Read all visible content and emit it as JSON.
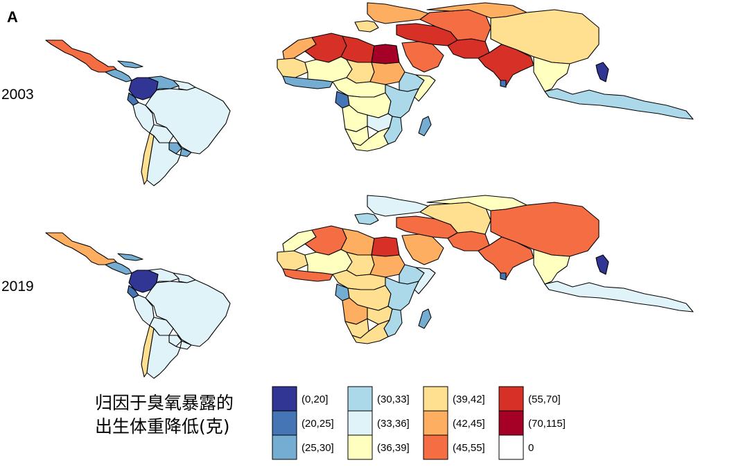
{
  "chart_data": {
    "type": "choropleth-map",
    "panel_label": "A",
    "legend": {
      "title_line1": "归因于臭氧暴露的",
      "title_line2": "出生体重降低(克)",
      "bins": [
        {
          "label": "(0,20]",
          "color": "#313695"
        },
        {
          "label": "(20,25]",
          "color": "#4575b4"
        },
        {
          "label": "(25,30]",
          "color": "#74add1"
        },
        {
          "label": "(30,33]",
          "color": "#abd9e9"
        },
        {
          "label": "(33,36]",
          "color": "#e0f3f8"
        },
        {
          "label": "(36,39]",
          "color": "#ffffbf"
        },
        {
          "label": "(39,42]",
          "color": "#fee090"
        },
        {
          "label": "(42,45]",
          "color": "#fdae61"
        },
        {
          "label": "(45,55]",
          "color": "#f46d43"
        },
        {
          "label": "(55,70]",
          "color": "#d73027"
        },
        {
          "label": "(70,115]",
          "color": "#a50026"
        },
        {
          "label": "0",
          "color": "#ffffff"
        }
      ]
    },
    "panels": [
      {
        "year": "2003",
        "regions": {
          "mexico": "(45,55]",
          "central_america": "(25,30]",
          "caribbean": "(25,30]",
          "colombia": "(0,20]",
          "venezuela": "(25,30]",
          "guianas": "(33,36]",
          "ecuador": "(20,25]",
          "peru": "(33,36]",
          "brazil": "(33,36]",
          "bolivia": "(33,36]",
          "paraguay": "(25,30]",
          "uruguay": "(25,30]",
          "chile": "(39,42]",
          "argentina": "(33,36]",
          "southern_europe": "(42,45]",
          "iberia": "(39,42]",
          "morocco": "(42,45]",
          "algeria": "(55,70]",
          "libya": "(55,70]",
          "egypt": "(70,115]",
          "west_sahel": "(39,42]",
          "west_africa_coast": "(25,30]",
          "mali_niger": "(36,39]",
          "chad": "(39,42]",
          "sudan": "(42,45]",
          "ethiopia": "(30,33]",
          "horn": "(36,39]",
          "central_africa": "(36,39]",
          "gabon_region": "(20,25]",
          "east_africa": "(30,33]",
          "drc": "(36,39]",
          "angola": "(36,39]",
          "zambia": "(33,36]",
          "mozambique": "(30,33]",
          "namibia": "(36,39]",
          "south_africa": "(36,39]",
          "madagascar": "(25,30]",
          "middle_east": "(55,70]",
          "arabia": "(45,55]",
          "iran": "(55,70]",
          "central_asia": "(45,55]",
          "russia": "(42,45]",
          "mongolia_china": "(39,42]",
          "south_asia": "(55,70]",
          "southeast_asia": "(36,39]",
          "indonesia": "(30,33]",
          "philippines": "(0,20]",
          "sri_lanka": "(20,25]"
        }
      },
      {
        "year": "2019",
        "regions": {
          "mexico": "(42,45]",
          "central_america": "(25,30]",
          "caribbean": "(25,30]",
          "colombia": "(0,20]",
          "venezuela": "(33,36]",
          "guianas": "(33,36]",
          "ecuador": "(20,25]",
          "peru": "(33,36]",
          "brazil": "(33,36]",
          "bolivia": "(33,36]",
          "paraguay": "(33,36]",
          "uruguay": "(33,36]",
          "chile": "(39,42]",
          "argentina": "(33,36]",
          "southern_europe": "(33,36]",
          "iberia": "(30,33]",
          "morocco": "(36,39]",
          "algeria": "(45,55]",
          "libya": "(42,45]",
          "egypt": "(55,70]",
          "west_sahel": "(39,42]",
          "west_africa_coast": "(45,55]",
          "mali_niger": "(36,39]",
          "chad": "(39,42]",
          "sudan": "(42,45]",
          "ethiopia": "(30,33]",
          "horn": "(33,36]",
          "central_africa": "(39,42]",
          "gabon_region": "(25,30]",
          "east_africa": "(30,33]",
          "drc": "(39,42]",
          "angola": "(42,45]",
          "zambia": "(39,42]",
          "mozambique": "(30,33]",
          "namibia": "(39,42]",
          "south_africa": "(39,42]",
          "madagascar": "(25,30]",
          "middle_east": "(45,55]",
          "arabia": "(42,45]",
          "iran": "(45,55]",
          "central_asia": "(39,42]",
          "russia": "(36,39]",
          "mongolia_china": "(45,55]",
          "south_asia": "(45,55]",
          "southeast_asia": "(36,39]",
          "indonesia": "(33,36]",
          "philippines": "(0,20]",
          "sri_lanka": "(20,25]"
        }
      }
    ]
  }
}
